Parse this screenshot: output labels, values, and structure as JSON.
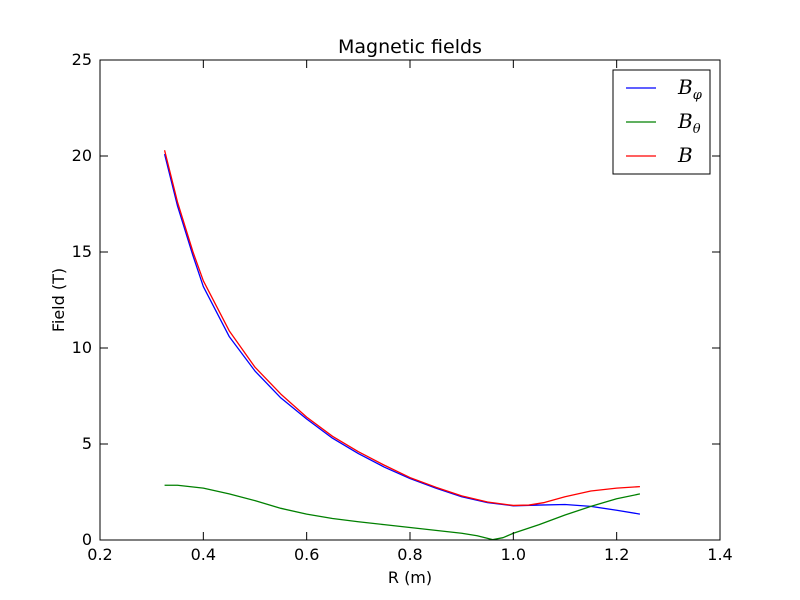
{
  "chart_data": {
    "type": "line",
    "title": "Magnetic fields",
    "xlabel": "R (m)",
    "ylabel": "Field (T)",
    "xlim": [
      0.2,
      1.4
    ],
    "ylim": [
      0,
      25
    ],
    "xticks": [
      "0.2",
      "0.4",
      "0.6",
      "0.8",
      "1.0",
      "1.2",
      "1.4"
    ],
    "yticks": [
      "0",
      "5",
      "10",
      "15",
      "20",
      "25"
    ],
    "grid": false,
    "legend_position": "top-right",
    "series": [
      {
        "name": "B_φ",
        "legend_main": "B",
        "legend_sub": "φ",
        "color": "#0000ff",
        "x": [
          0.325,
          0.35,
          0.38,
          0.4,
          0.45,
          0.5,
          0.55,
          0.6,
          0.65,
          0.7,
          0.75,
          0.8,
          0.85,
          0.9,
          0.95,
          1.0,
          1.05,
          1.1,
          1.15,
          1.2,
          1.245
        ],
        "y": [
          20.1,
          17.4,
          14.8,
          13.2,
          10.6,
          8.8,
          7.4,
          6.3,
          5.3,
          4.5,
          3.8,
          3.2,
          2.7,
          2.25,
          1.95,
          1.78,
          1.82,
          1.85,
          1.75,
          1.55,
          1.35
        ]
      },
      {
        "name": "B_θ",
        "legend_main": "B",
        "legend_sub": "θ",
        "color": "#008000",
        "x": [
          0.325,
          0.35,
          0.4,
          0.45,
          0.5,
          0.55,
          0.6,
          0.65,
          0.7,
          0.75,
          0.8,
          0.85,
          0.9,
          0.93,
          0.96,
          0.98,
          1.0,
          1.05,
          1.1,
          1.15,
          1.2,
          1.245
        ],
        "y": [
          2.85,
          2.85,
          2.7,
          2.4,
          2.05,
          1.65,
          1.35,
          1.12,
          0.95,
          0.8,
          0.65,
          0.5,
          0.35,
          0.22,
          0.02,
          0.12,
          0.35,
          0.8,
          1.3,
          1.75,
          2.15,
          2.4
        ]
      },
      {
        "name": "B",
        "legend_main": "B",
        "legend_sub": "",
        "color": "#ff0000",
        "x": [
          0.325,
          0.35,
          0.38,
          0.4,
          0.45,
          0.5,
          0.55,
          0.6,
          0.65,
          0.7,
          0.75,
          0.8,
          0.85,
          0.9,
          0.95,
          1.0,
          1.03,
          1.06,
          1.1,
          1.15,
          1.2,
          1.245
        ],
        "y": [
          20.3,
          17.6,
          15.0,
          13.5,
          10.9,
          9.0,
          7.6,
          6.4,
          5.4,
          4.6,
          3.9,
          3.25,
          2.75,
          2.3,
          1.98,
          1.8,
          1.82,
          1.95,
          2.25,
          2.55,
          2.7,
          2.78
        ]
      }
    ]
  }
}
